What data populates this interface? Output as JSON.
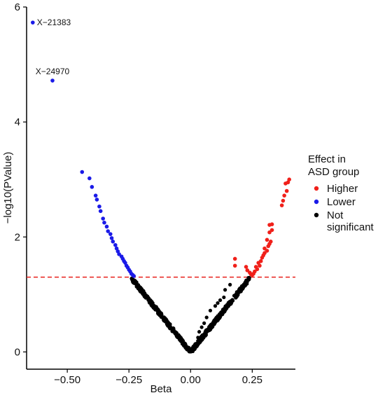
{
  "chart_data": {
    "type": "scatter",
    "title": "",
    "xlabel": "Beta",
    "ylabel": "−log10(PValue)",
    "xlim": [
      -0.665,
      0.425
    ],
    "ylim": [
      -0.3,
      6.0
    ],
    "x_ticks": [
      -0.5,
      -0.25,
      0.0,
      0.25
    ],
    "x_tick_labels": [
      "−0.50",
      "−0.25",
      "0.00",
      "0.25"
    ],
    "y_ticks": [
      0,
      2,
      4,
      6
    ],
    "y_tick_labels": [
      "0",
      "2",
      "4",
      "6"
    ],
    "grid": false,
    "threshold_line": {
      "y": 1.301,
      "color": "#e8201c",
      "style": "dashed"
    },
    "legend": {
      "title": [
        "Effect in",
        "ASD group"
      ],
      "placement": "right",
      "entries": [
        {
          "label": [
            "Higher"
          ],
          "color": "#f0201a"
        },
        {
          "label": [
            "Lower"
          ],
          "color": "#1a1ae8"
        },
        {
          "label": [
            "Not",
            "significant"
          ],
          "color": "#000000"
        }
      ]
    },
    "series": [
      {
        "name": "Higher",
        "color": "#f0201a",
        "points": [
          [
            0.4,
            3.0
          ],
          [
            0.395,
            2.95
          ],
          [
            0.385,
            2.93
          ],
          [
            0.39,
            2.8
          ],
          [
            0.38,
            2.72
          ],
          [
            0.375,
            2.63
          ],
          [
            0.37,
            2.55
          ],
          [
            0.33,
            2.22
          ],
          [
            0.32,
            2.21
          ],
          [
            0.33,
            2.12
          ],
          [
            0.32,
            2.08
          ],
          [
            0.31,
            1.95
          ],
          [
            0.325,
            1.92
          ],
          [
            0.32,
            1.88
          ],
          [
            0.315,
            1.84
          ],
          [
            0.3,
            1.8
          ],
          [
            0.31,
            1.76
          ],
          [
            0.3,
            1.72
          ],
          [
            0.295,
            1.68
          ],
          [
            0.29,
            1.64
          ],
          [
            0.285,
            1.58
          ],
          [
            0.275,
            1.55
          ],
          [
            0.28,
            1.5
          ],
          [
            0.265,
            1.48
          ],
          [
            0.27,
            1.44
          ],
          [
            0.26,
            1.4
          ],
          [
            0.255,
            1.36
          ],
          [
            0.25,
            1.34
          ],
          [
            0.18,
            1.62
          ],
          [
            0.18,
            1.5
          ],
          [
            0.225,
            1.48
          ],
          [
            0.23,
            1.42
          ],
          [
            0.24,
            1.38
          ],
          [
            0.245,
            1.35
          ]
        ]
      },
      {
        "name": "Lower",
        "color": "#1a1ae8",
        "points": [
          [
            -0.64,
            5.73
          ],
          [
            -0.56,
            4.72
          ],
          [
            -0.44,
            3.13
          ],
          [
            -0.41,
            3.02
          ],
          [
            -0.4,
            2.87
          ],
          [
            -0.385,
            2.72
          ],
          [
            -0.38,
            2.65
          ],
          [
            -0.37,
            2.53
          ],
          [
            -0.365,
            2.45
          ],
          [
            -0.355,
            2.32
          ],
          [
            -0.35,
            2.25
          ],
          [
            -0.34,
            2.18
          ],
          [
            -0.335,
            2.1
          ],
          [
            -0.325,
            2.05
          ],
          [
            -0.32,
            1.98
          ],
          [
            -0.315,
            1.92
          ],
          [
            -0.305,
            1.86
          ],
          [
            -0.3,
            1.8
          ],
          [
            -0.295,
            1.75
          ],
          [
            -0.29,
            1.7
          ],
          [
            -0.28,
            1.66
          ],
          [
            -0.275,
            1.62
          ],
          [
            -0.27,
            1.58
          ],
          [
            -0.265,
            1.55
          ],
          [
            -0.26,
            1.5
          ],
          [
            -0.255,
            1.47
          ],
          [
            -0.25,
            1.43
          ],
          [
            -0.245,
            1.4
          ],
          [
            -0.24,
            1.36
          ],
          [
            -0.235,
            1.34
          ],
          [
            -0.23,
            1.32
          ]
        ]
      },
      {
        "name": "Not significant",
        "color": "#000000",
        "generator": {
          "count": 620,
          "x_min": -0.24,
          "x_max": 0.24,
          "slope": 5.35,
          "jitter": 0.08
        },
        "extra_points": [
          [
            0.16,
            1.17
          ],
          [
            0.14,
            1.08
          ],
          [
            0.135,
            0.95
          ],
          [
            0.12,
            0.9
          ],
          [
            0.11,
            0.85
          ],
          [
            0.1,
            0.8
          ],
          [
            0.08,
            0.72
          ],
          [
            0.065,
            0.6
          ],
          [
            0.055,
            0.5
          ],
          [
            0.045,
            0.43
          ],
          [
            0.035,
            0.35
          ],
          [
            0.03,
            0.25
          ]
        ]
      }
    ],
    "annotations": [
      {
        "text": "X−21383",
        "x": -0.64,
        "y": 5.73
      },
      {
        "text": "X−24970",
        "x": -0.56,
        "y": 4.72
      }
    ]
  }
}
